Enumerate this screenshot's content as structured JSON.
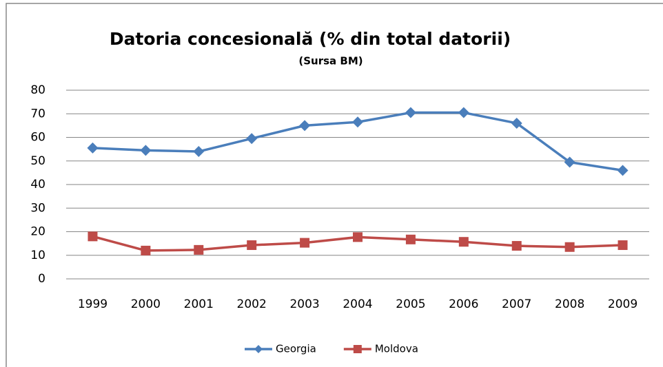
{
  "chart_data": {
    "type": "line",
    "title": "Datoria concesională (% din total datorii)",
    "source": "(Sursa BM)",
    "categories": [
      "1999",
      "2000",
      "2001",
      "2002",
      "2003",
      "2004",
      "2005",
      "2006",
      "2007",
      "2008",
      "2009"
    ],
    "series": [
      {
        "name": "Georgia",
        "color": "#4a7ebb",
        "marker": "diamond",
        "values": [
          55.5,
          54.5,
          54,
          59.5,
          65,
          66.5,
          70.5,
          70.5,
          66,
          49.5,
          46
        ]
      },
      {
        "name": "Moldova",
        "color": "#be4b48",
        "marker": "square",
        "values": [
          18,
          12,
          12.3,
          14.3,
          15.3,
          17.7,
          16.7,
          15.7,
          14,
          13.5,
          14.3
        ]
      }
    ],
    "ylim": [
      0,
      80
    ],
    "yticks": [
      0,
      10,
      20,
      30,
      40,
      50,
      60,
      70,
      80
    ],
    "grid": true,
    "legend": "bottom"
  }
}
